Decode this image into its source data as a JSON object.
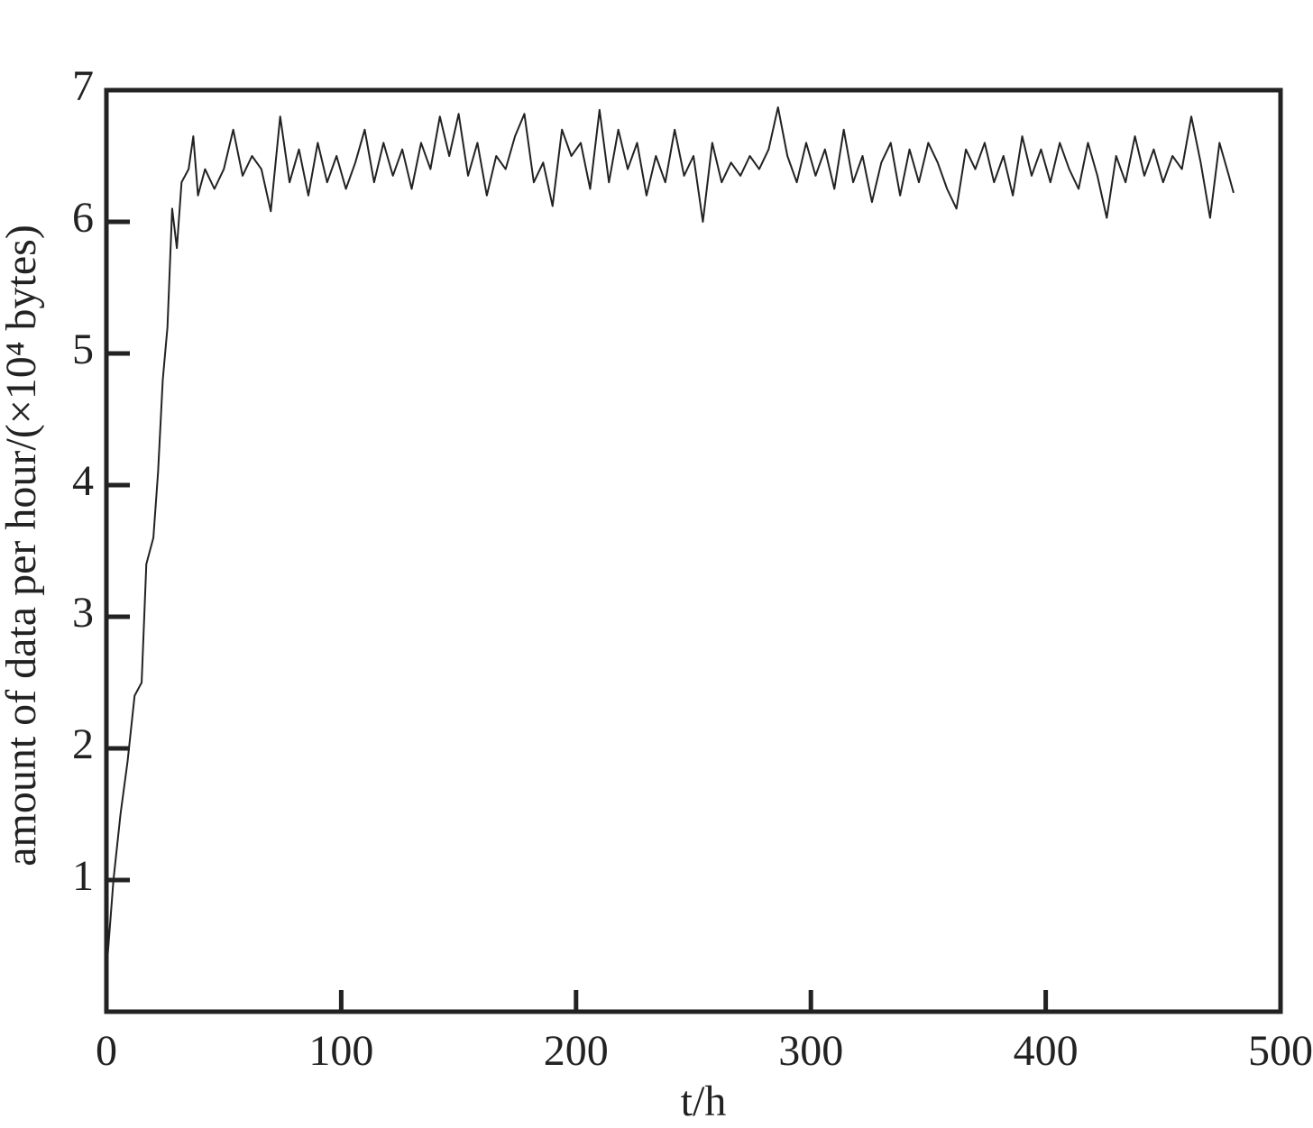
{
  "chart_data": {
    "type": "line",
    "xlabel": "t/h",
    "ylabel": "amount of data per hour/(×10⁴ bytes)",
    "x": [
      0,
      3,
      6,
      9,
      12,
      15,
      17,
      20,
      22,
      24,
      26,
      28,
      30,
      32,
      35,
      37,
      39,
      42,
      46,
      50,
      54,
      58,
      62,
      66,
      70,
      74,
      78,
      82,
      86,
      90,
      94,
      98,
      102,
      106,
      110,
      114,
      118,
      122,
      126,
      130,
      134,
      138,
      142,
      146,
      150,
      154,
      158,
      162,
      166,
      170,
      174,
      178,
      182,
      186,
      190,
      194,
      198,
      202,
      206,
      210,
      214,
      218,
      222,
      226,
      230,
      234,
      238,
      242,
      246,
      250,
      254,
      258,
      262,
      266,
      270,
      274,
      278,
      282,
      286,
      290,
      294,
      298,
      302,
      306,
      310,
      314,
      318,
      322,
      326,
      330,
      334,
      338,
      342,
      346,
      350,
      354,
      358,
      362,
      366,
      370,
      374,
      378,
      382,
      386,
      390,
      394,
      398,
      402,
      406,
      410,
      414,
      418,
      422,
      426,
      430,
      434,
      438,
      442,
      446,
      450,
      454,
      458,
      462,
      466,
      470,
      474,
      478,
      480
    ],
    "series": [
      {
        "color": "#222222",
        "values": [
          0.3,
          1.0,
          1.5,
          1.9,
          2.4,
          2.5,
          3.4,
          3.6,
          4.1,
          4.8,
          5.2,
          6.1,
          5.8,
          6.3,
          6.4,
          6.65,
          6.2,
          6.4,
          6.25,
          6.4,
          6.7,
          6.35,
          6.5,
          6.4,
          6.08,
          6.8,
          6.3,
          6.55,
          6.2,
          6.6,
          6.3,
          6.5,
          6.25,
          6.45,
          6.7,
          6.3,
          6.6,
          6.35,
          6.55,
          6.25,
          6.6,
          6.4,
          6.8,
          6.5,
          6.82,
          6.35,
          6.6,
          6.2,
          6.5,
          6.4,
          6.65,
          6.82,
          6.3,
          6.45,
          6.12,
          6.7,
          6.5,
          6.6,
          6.25,
          6.85,
          6.3,
          6.7,
          6.4,
          6.6,
          6.2,
          6.5,
          6.3,
          6.7,
          6.35,
          6.5,
          6.0,
          6.6,
          6.3,
          6.45,
          6.35,
          6.5,
          6.4,
          6.55,
          6.87,
          6.5,
          6.3,
          6.6,
          6.35,
          6.55,
          6.25,
          6.7,
          6.3,
          6.5,
          6.15,
          6.45,
          6.6,
          6.2,
          6.55,
          6.3,
          6.6,
          6.45,
          6.25,
          6.1,
          6.55,
          6.4,
          6.6,
          6.3,
          6.5,
          6.2,
          6.65,
          6.35,
          6.55,
          6.3,
          6.6,
          6.4,
          6.25,
          6.6,
          6.35,
          6.03,
          6.5,
          6.3,
          6.65,
          6.35,
          6.55,
          6.3,
          6.5,
          6.4,
          6.8,
          6.45,
          6.03,
          6.6,
          6.35,
          6.22
        ]
      }
    ],
    "xlim": [
      0,
      500
    ],
    "xticks": [
      0,
      100,
      200,
      300,
      400,
      500
    ],
    "ylim": [
      0,
      7
    ],
    "yticks": [
      1,
      2,
      3,
      4,
      5,
      6,
      7
    ]
  }
}
